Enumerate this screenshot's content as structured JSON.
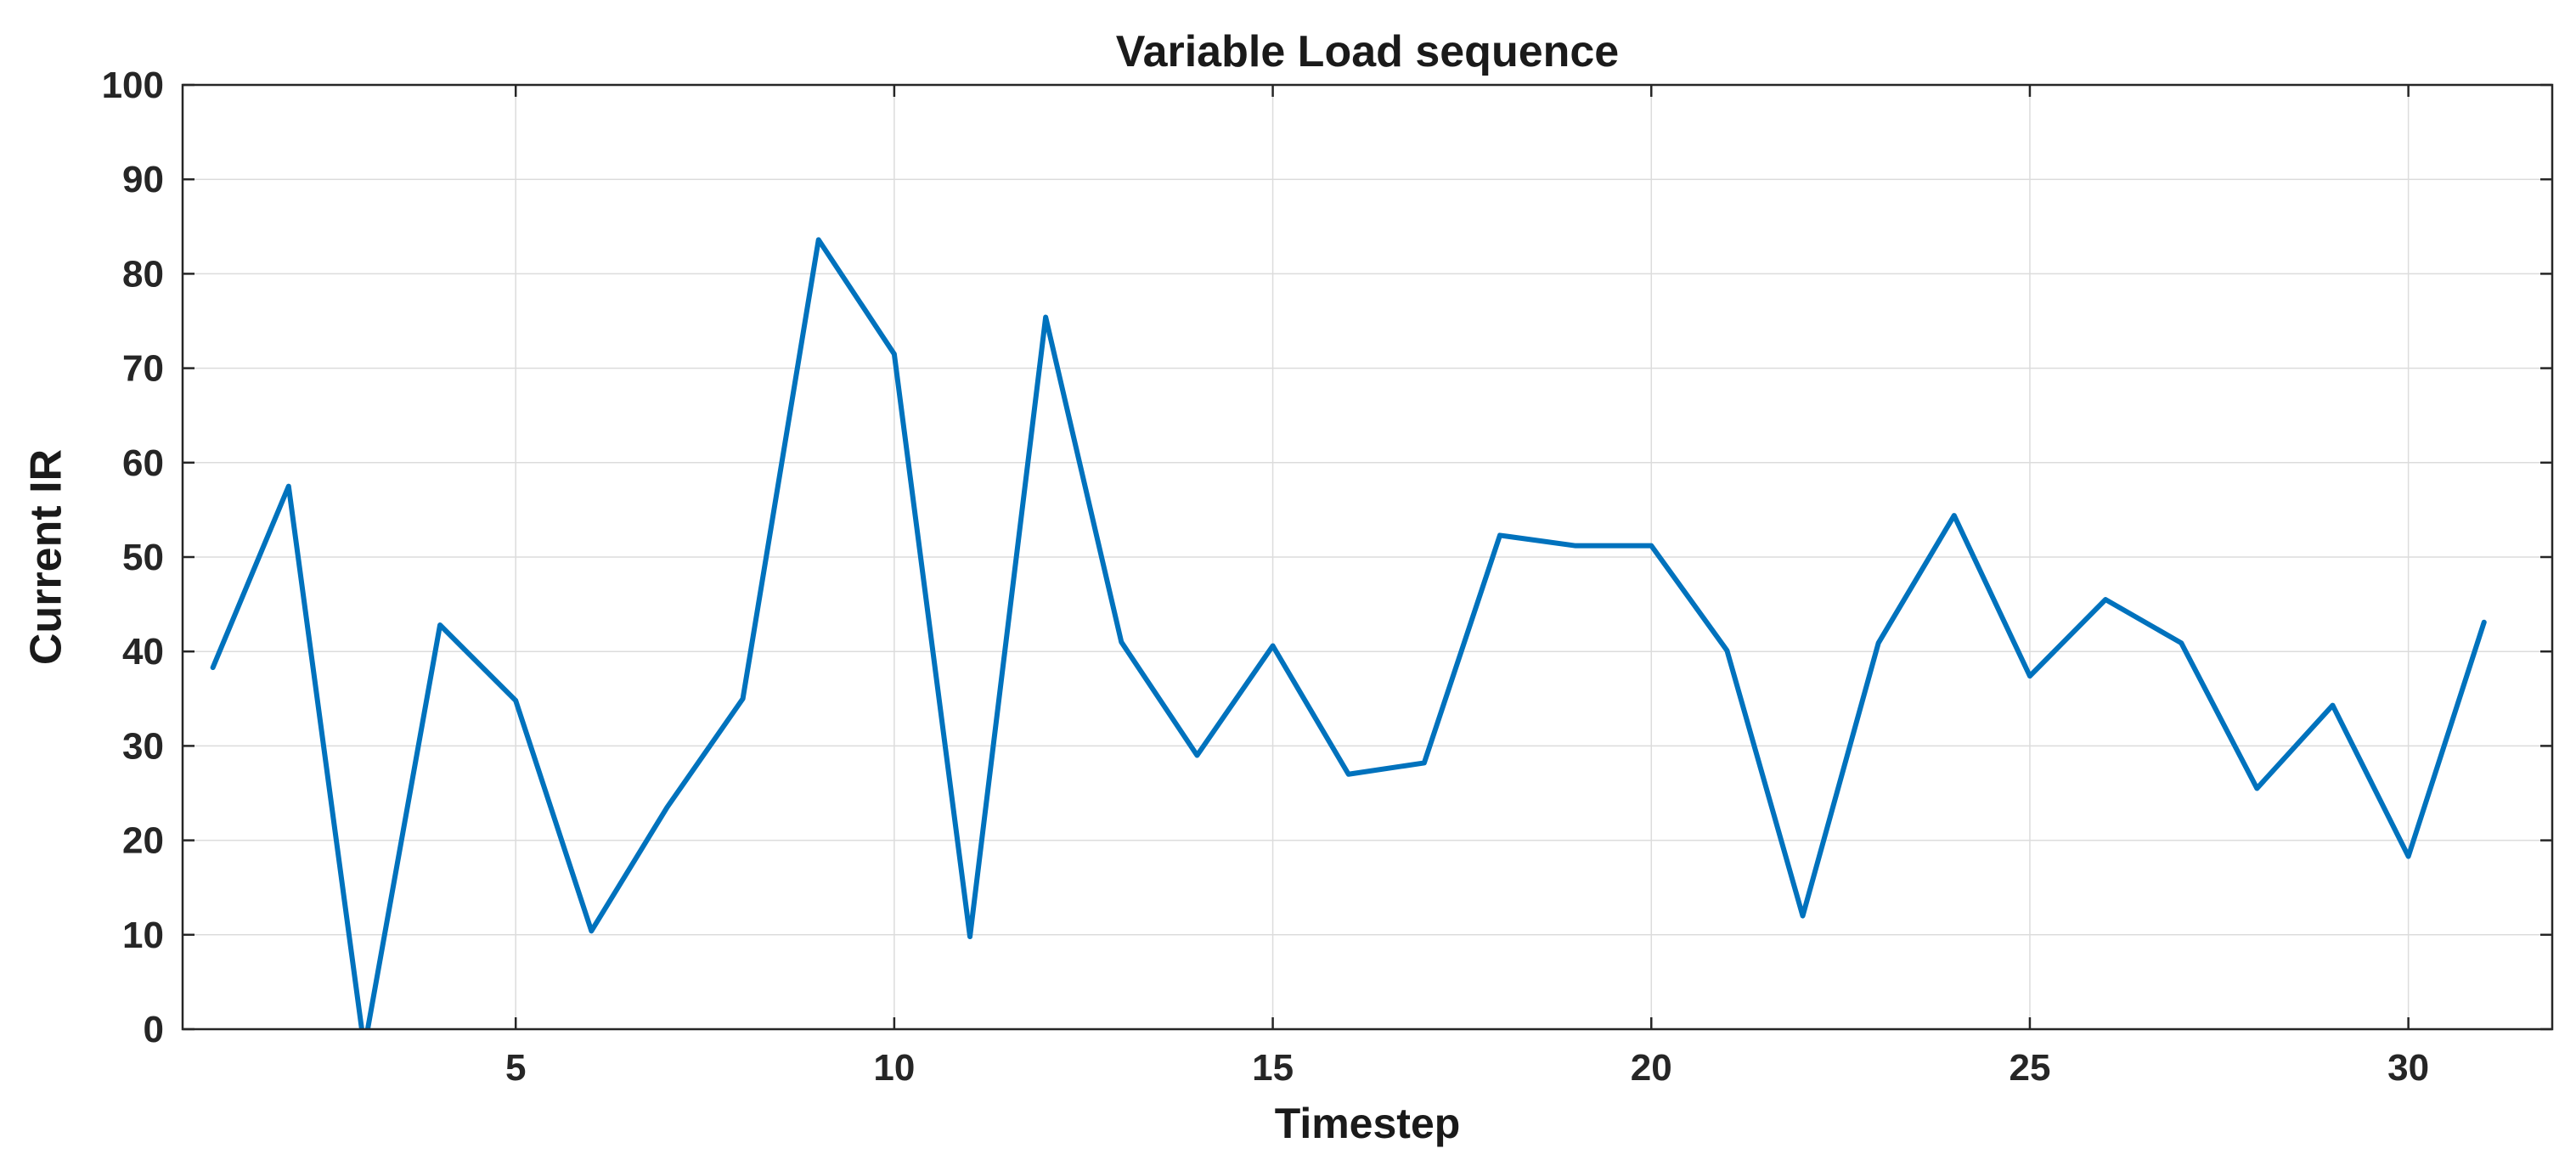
{
  "chart_data": {
    "type": "line",
    "title": "Variable Load sequence",
    "xlabel": "Timestep",
    "ylabel": "Current IR",
    "xlim": [
      0.6,
      31.9
    ],
    "ylim": [
      0,
      100
    ],
    "xticks": [
      5,
      10,
      15,
      20,
      25,
      30
    ],
    "yticks": [
      0,
      10,
      20,
      30,
      40,
      50,
      60,
      70,
      80,
      90,
      100
    ],
    "grid": true,
    "series": [
      {
        "color": "#0072BD",
        "x": [
          1,
          2,
          3,
          4,
          5,
          6,
          7,
          8,
          9,
          10,
          11,
          12,
          13,
          14,
          15,
          16,
          17,
          18,
          19,
          20,
          21,
          22,
          23,
          24,
          25,
          26,
          27,
          28,
          29,
          30,
          31
        ],
        "y": [
          38.3,
          57.5,
          -2.0,
          42.8,
          34.8,
          10.4,
          23.5,
          35.0,
          83.6,
          71.5,
          9.8,
          75.4,
          41.0,
          29.0,
          40.6,
          27.0,
          28.2,
          52.3,
          51.2,
          51.2,
          40.1,
          12.0,
          40.9,
          54.4,
          37.4,
          45.5,
          40.9,
          25.5,
          34.3,
          18.3,
          43.1
        ]
      }
    ]
  }
}
